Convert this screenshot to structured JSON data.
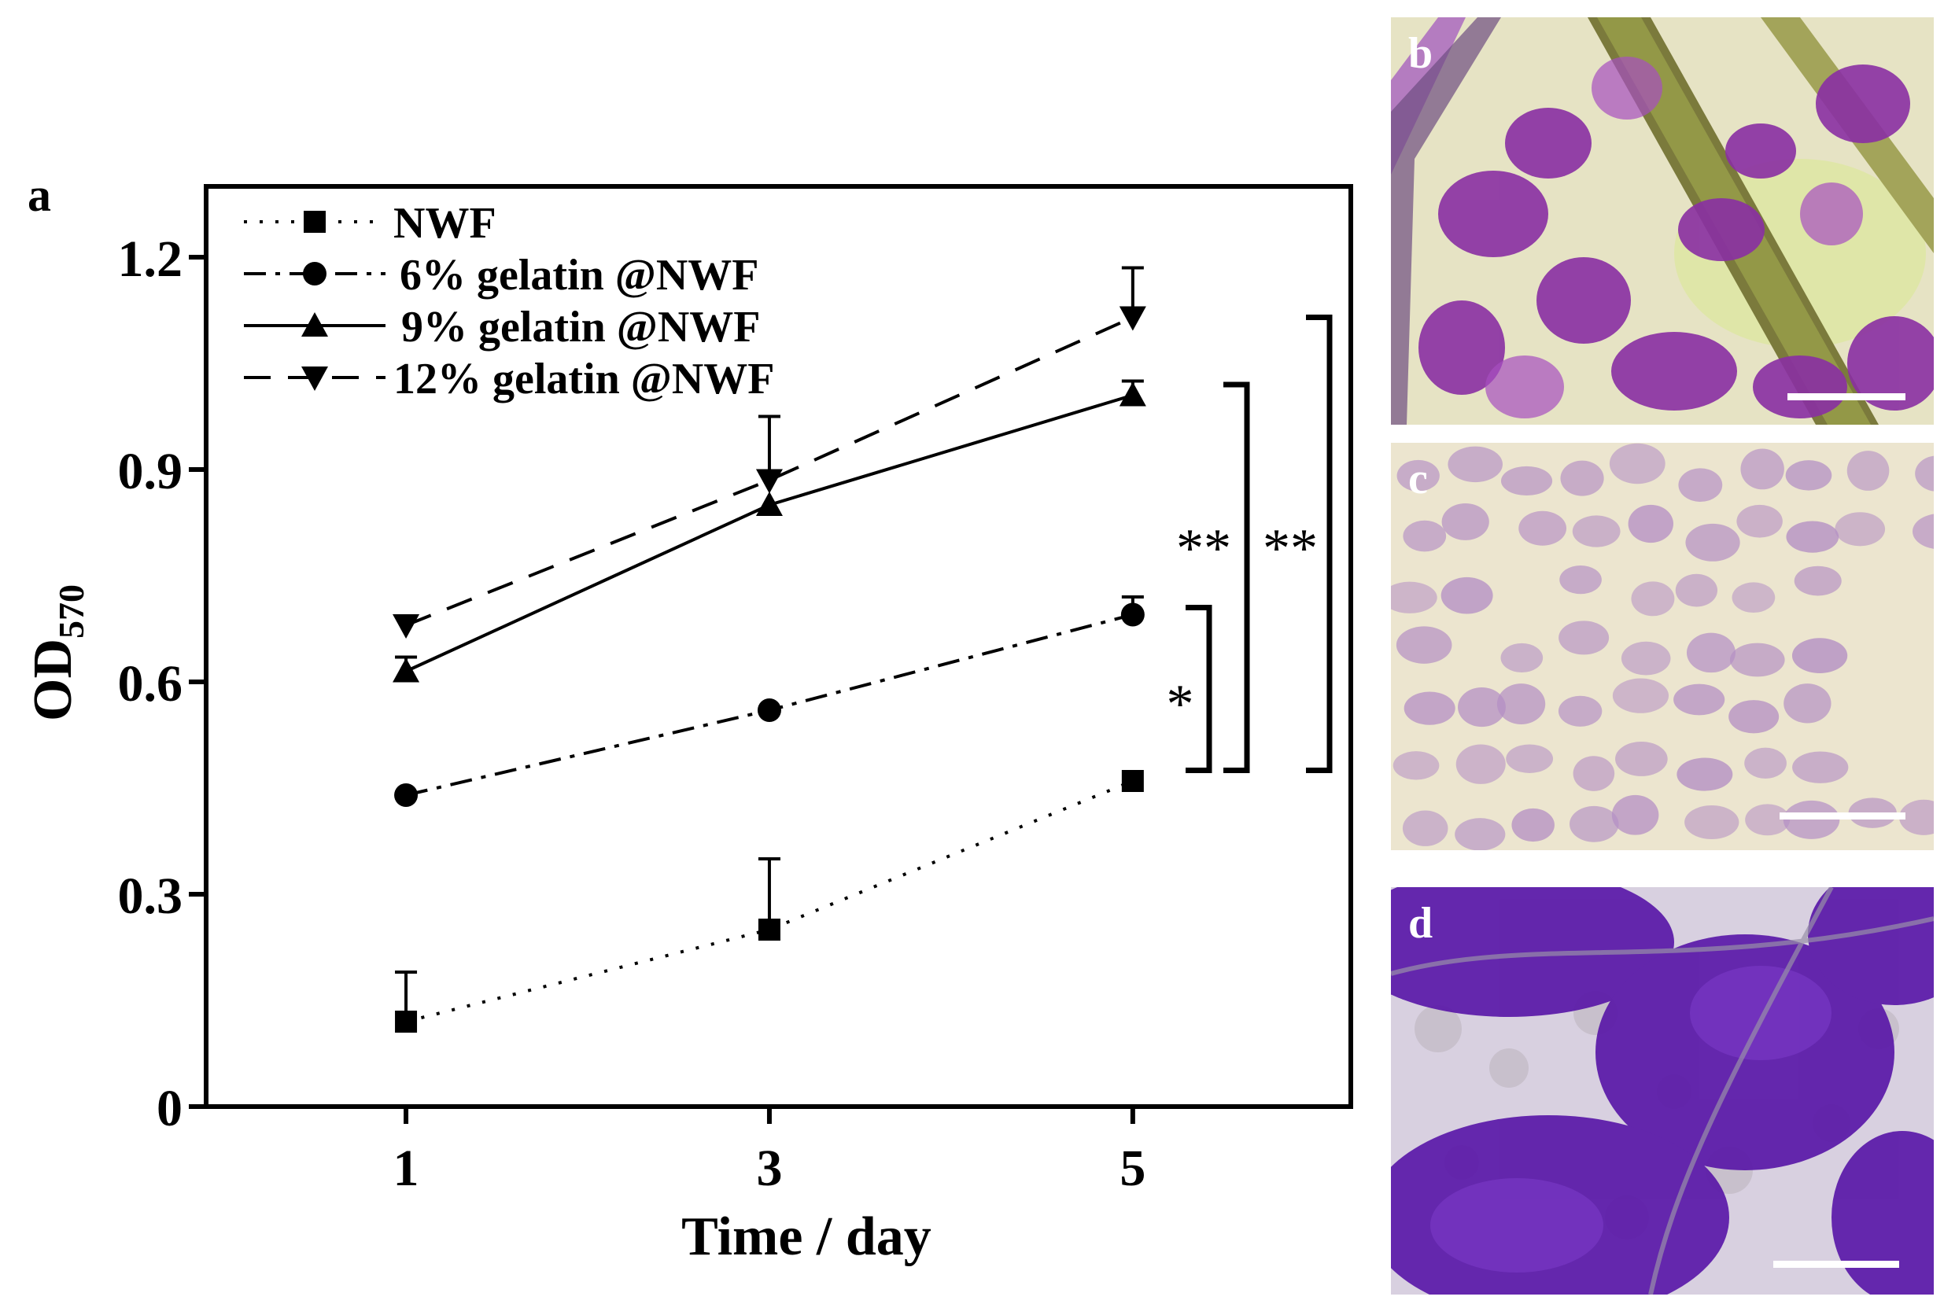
{
  "chart_data": {
    "type": "line",
    "panel_label": "a",
    "xlabel": "Time / day",
    "ylabel_main": "OD",
    "ylabel_sub": "570",
    "x": [
      1,
      3,
      5
    ],
    "x_ticks": [
      "1",
      "3",
      "5"
    ],
    "y_ticks": [
      "0",
      "0.3",
      "0.6",
      "0.9",
      "1.2"
    ],
    "y_tick_values": [
      0,
      0.3,
      0.6,
      0.9,
      1.2
    ],
    "xlim": [
      -0.1,
      6.2
    ],
    "ylim": [
      0,
      1.3
    ],
    "grid": false,
    "legend_position": "top-left",
    "series": [
      {
        "name": "NWF",
        "marker": "square",
        "dash": "dotted",
        "values": [
          0.12,
          0.25,
          0.46
        ],
        "errors": [
          0.07,
          0.1,
          0.0
        ]
      },
      {
        "name": "6% gelatin @NWF",
        "marker": "circle",
        "dash": "dashdot",
        "values": [
          0.44,
          0.56,
          0.695
        ],
        "errors": [
          0.0,
          0.0,
          0.025
        ]
      },
      {
        "name": "9% gelatin @NWF",
        "marker": "triangle-up",
        "dash": "solid",
        "values": [
          0.615,
          0.85,
          1.005
        ],
        "errors": [
          0.02,
          0.0,
          0.02
        ]
      },
      {
        "name": "12% gelatin @NWF",
        "marker": "triangle-down",
        "dash": "dashed",
        "values": [
          0.68,
          0.885,
          1.115
        ],
        "errors": [
          0.0,
          0.09,
          0.07
        ]
      }
    ],
    "significance": [
      {
        "label": "*",
        "range": [
          0.475,
          0.705
        ]
      },
      {
        "label": "**",
        "range": [
          0.475,
          1.02
        ]
      },
      {
        "label": "**",
        "range": [
          0.475,
          1.115
        ]
      }
    ]
  },
  "panels": {
    "b": {
      "label": "b",
      "tint": "#8a2fa3",
      "background": "#e9e6c9"
    },
    "c": {
      "label": "c",
      "tint": "#b48fc4",
      "background": "#ece5cf"
    },
    "d": {
      "label": "d",
      "tint": "#6a1fb0",
      "background": "#cfc2dc"
    }
  }
}
